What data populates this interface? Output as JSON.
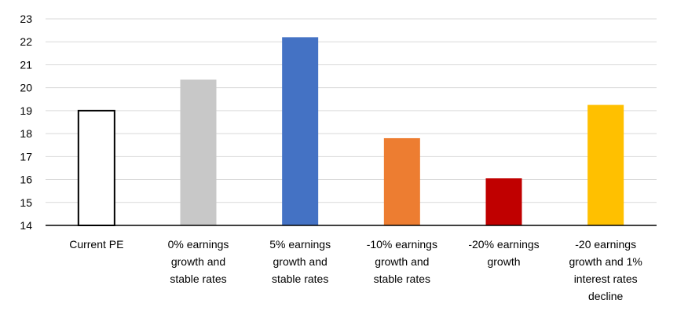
{
  "chart_data": {
    "type": "bar",
    "title": "",
    "xlabel": "",
    "ylabel": "",
    "ylim": [
      14,
      23
    ],
    "yticks": [
      14,
      15,
      16,
      17,
      18,
      19,
      20,
      21,
      22,
      23
    ],
    "grid": true,
    "legend": "none",
    "categories": [
      [
        "Current PE"
      ],
      [
        "0% earnings",
        "growth and",
        "stable rates"
      ],
      [
        "5% earnings",
        "growth and",
        "stable rates"
      ],
      [
        "-10% earnings",
        "growth and",
        "stable rates"
      ],
      [
        "-20% earnings",
        "growth"
      ],
      [
        "-20 earnings",
        "growth and 1%",
        "interest rates",
        "decline"
      ]
    ],
    "values": [
      19.0,
      20.35,
      22.2,
      17.8,
      16.05,
      19.25
    ],
    "bar_fills": [
      "#ffffff",
      "#c8c8c8",
      "#4472c4",
      "#ed7d31",
      "#c00000",
      "#ffc000"
    ],
    "bar_strokes": [
      "#000000",
      "none",
      "none",
      "none",
      "none",
      "none"
    ]
  }
}
